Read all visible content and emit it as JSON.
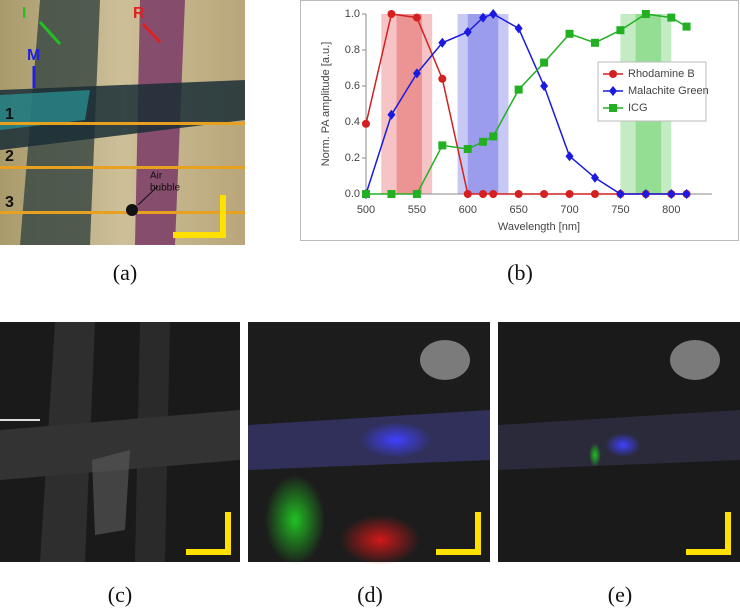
{
  "figure": {
    "panel_a": {
      "labels": [
        "I",
        "R",
        "M"
      ],
      "line_labels": [
        "1",
        "2",
        "3"
      ],
      "annotation": [
        "Air",
        "bubble"
      ]
    },
    "captions": [
      "(a)",
      "(b)",
      "(c)",
      "(d)",
      "(e)"
    ]
  },
  "chart_data": {
    "type": "line",
    "x_label": "Wavelength [nm]",
    "y_label": "Norm. PA amplitude [a.u.]",
    "x": [
      500,
      525,
      550,
      575,
      600,
      615,
      625,
      650,
      675,
      700,
      725,
      750,
      775,
      800,
      815
    ],
    "xlim": [
      500,
      840
    ],
    "xticks": [
      500,
      550,
      600,
      650,
      700,
      750,
      800
    ],
    "ylim": [
      0,
      1
    ],
    "yticks": [
      {
        "value": 0,
        "label": "0.0"
      },
      {
        "value": 0.2,
        "label": "0.2"
      },
      {
        "value": 0.4,
        "label": "0.4"
      },
      {
        "value": 0.6,
        "label": "0.6"
      },
      {
        "value": 0.8,
        "label": "0.8"
      },
      {
        "value": 1,
        "label": "1.0"
      }
    ],
    "grid": false,
    "legend": "upper right",
    "bands": [
      {
        "range": [
          515,
          565
        ],
        "color": "#f6c4c4"
      },
      {
        "range": [
          530,
          555
        ],
        "color": "#ec9494"
      },
      {
        "range": [
          590,
          640
        ],
        "color": "#c8c8f4"
      },
      {
        "range": [
          600,
          630
        ],
        "color": "#9c9cec"
      },
      {
        "range": [
          750,
          800
        ],
        "color": "#c4ecc4"
      },
      {
        "range": [
          765,
          790
        ],
        "color": "#94de94"
      }
    ],
    "series": [
      {
        "name": "Rhodamine B",
        "color": "#d42020",
        "marker": "circle",
        "values": [
          0.39,
          1.0,
          0.98,
          0.64,
          0,
          0,
          0,
          0,
          0,
          0,
          0,
          0,
          0,
          0,
          0
        ]
      },
      {
        "name": "Malachite Green",
        "color": "#1a1ae0",
        "marker": "diamond",
        "values": [
          0,
          0.44,
          0.67,
          0.84,
          0.9,
          0.98,
          1.0,
          0.92,
          0.6,
          0.21,
          0.09,
          0,
          0,
          0,
          0
        ]
      },
      {
        "name": "ICG",
        "color": "#22b022",
        "marker": "square",
        "values": [
          0,
          0,
          0,
          0.27,
          0.25,
          0.29,
          0.32,
          0.58,
          0.73,
          0.89,
          0.84,
          0.91,
          1.0,
          0.98,
          0.93
        ]
      }
    ]
  }
}
